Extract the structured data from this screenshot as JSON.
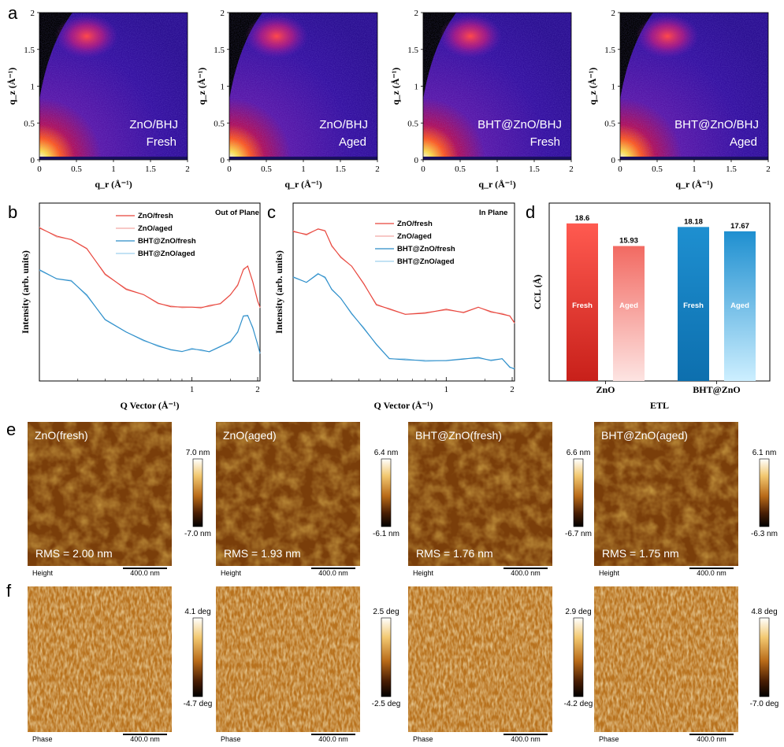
{
  "panels": {
    "a": "a",
    "b": "b",
    "c": "c",
    "d": "d",
    "e": "e",
    "f": "f"
  },
  "giwaxs": {
    "maps": [
      {
        "line1": "ZnO/BHJ",
        "line2": "Fresh"
      },
      {
        "line1": "ZnO/BHJ",
        "line2": "Aged"
      },
      {
        "line1": "BHT@ZnO/BHJ",
        "line2": "Fresh"
      },
      {
        "line1": "BHT@ZnO/BHJ",
        "line2": "Aged"
      }
    ],
    "xticks": [
      "0",
      "0.5",
      "1",
      "1.5",
      "2"
    ],
    "yticks": [
      "0",
      "0.5",
      "1",
      "1.5",
      "2"
    ],
    "xlabel": "q_r (Å⁻¹)",
    "ylabel": "q_z (Å⁻¹)"
  },
  "chart_data": [
    {
      "type": "line",
      "panel": "b",
      "title": "Out of Plane",
      "xlabel": "Q Vector (Å⁻¹)",
      "ylabel": "Intensity (arb. units)",
      "xscale": "log",
      "xlim": [
        0.2,
        2.05
      ],
      "xticks": [
        "1",
        "2"
      ],
      "legend": [
        "ZnO/fresh",
        "ZnO/aged",
        "BHT@ZnO/fresh",
        "BHT@ZnO/aged"
      ],
      "series": [
        {
          "name": "ZnO/fresh",
          "color": "#e8433a",
          "x": [
            0.2,
            0.24,
            0.28,
            0.33,
            0.4,
            0.5,
            0.6,
            0.7,
            0.8,
            0.9,
            1.0,
            1.1,
            1.2,
            1.35,
            1.5,
            1.62,
            1.72,
            1.8,
            1.9,
            2.0,
            2.05
          ],
          "y": [
            0.86,
            0.81,
            0.8,
            0.74,
            0.6,
            0.52,
            0.48,
            0.44,
            0.42,
            0.41,
            0.42,
            0.41,
            0.42,
            0.44,
            0.48,
            0.54,
            0.63,
            0.64,
            0.56,
            0.45,
            0.41
          ]
        },
        {
          "name": "ZnO/aged",
          "color": "#f2a8a3",
          "x": [
            0.2,
            0.24,
            0.28,
            0.33,
            0.4,
            0.5,
            0.6,
            0.7,
            0.8,
            0.9,
            1.0,
            1.1,
            1.2,
            1.35,
            1.5,
            1.62,
            1.72,
            1.8,
            1.9,
            2.0,
            2.05
          ],
          "y": [
            0.86,
            0.81,
            0.8,
            0.74,
            0.6,
            0.52,
            0.48,
            0.44,
            0.42,
            0.41,
            0.42,
            0.41,
            0.42,
            0.44,
            0.48,
            0.54,
            0.63,
            0.64,
            0.56,
            0.45,
            0.41
          ]
        },
        {
          "name": "BHT@ZnO/fresh",
          "color": "#2a8cc8",
          "x": [
            0.2,
            0.24,
            0.28,
            0.33,
            0.4,
            0.5,
            0.6,
            0.7,
            0.8,
            0.9,
            1.0,
            1.1,
            1.2,
            1.35,
            1.5,
            1.62,
            1.72,
            1.8,
            1.9,
            2.0,
            2.05
          ],
          "y": [
            0.62,
            0.58,
            0.56,
            0.48,
            0.35,
            0.27,
            0.23,
            0.2,
            0.17,
            0.17,
            0.18,
            0.17,
            0.17,
            0.19,
            0.22,
            0.28,
            0.36,
            0.37,
            0.3,
            0.2,
            0.16
          ]
        },
        {
          "name": "BHT@ZnO/aged",
          "color": "#9fd0ee",
          "x": [
            0.2,
            0.24,
            0.28,
            0.33,
            0.4,
            0.5,
            0.6,
            0.7,
            0.8,
            0.9,
            1.0,
            1.1,
            1.2,
            1.35,
            1.5,
            1.62,
            1.72,
            1.8,
            1.9,
            2.0,
            2.05
          ],
          "y": [
            0.62,
            0.58,
            0.56,
            0.48,
            0.35,
            0.27,
            0.23,
            0.2,
            0.17,
            0.17,
            0.18,
            0.17,
            0.17,
            0.19,
            0.22,
            0.28,
            0.36,
            0.37,
            0.3,
            0.2,
            0.16
          ]
        }
      ]
    },
    {
      "type": "line",
      "panel": "c",
      "title": "In Plane",
      "xlabel": "Q Vector (Å⁻¹)",
      "ylabel": "Intensity (arb. units)",
      "xscale": "log",
      "xlim": [
        0.2,
        2.05
      ],
      "xticks": [
        "1",
        "2"
      ],
      "legend": [
        "ZnO/fresh",
        "ZnO/aged",
        "BHT@ZnO/fresh",
        "BHT@ZnO/aged"
      ],
      "series": [
        {
          "name": "ZnO/fresh",
          "color": "#e8433a",
          "x": [
            0.2,
            0.23,
            0.26,
            0.28,
            0.3,
            0.33,
            0.37,
            0.42,
            0.48,
            0.55,
            0.65,
            0.8,
            1.0,
            1.2,
            1.4,
            1.6,
            1.8,
            1.95,
            2.05
          ],
          "y": [
            0.84,
            0.82,
            0.86,
            0.84,
            0.76,
            0.7,
            0.64,
            0.55,
            0.43,
            0.4,
            0.38,
            0.38,
            0.4,
            0.39,
            0.41,
            0.39,
            0.38,
            0.36,
            0.33
          ]
        },
        {
          "name": "ZnO/aged",
          "color": "#f2a8a3",
          "x": [
            0.2,
            0.23,
            0.26,
            0.28,
            0.3,
            0.33,
            0.37,
            0.42,
            0.48,
            0.55,
            0.65,
            0.8,
            1.0,
            1.2,
            1.4,
            1.6,
            1.8,
            1.95,
            2.05
          ],
          "y": [
            0.84,
            0.82,
            0.86,
            0.84,
            0.76,
            0.7,
            0.64,
            0.55,
            0.43,
            0.4,
            0.38,
            0.38,
            0.4,
            0.39,
            0.41,
            0.39,
            0.38,
            0.36,
            0.33
          ]
        },
        {
          "name": "BHT@ZnO/fresh",
          "color": "#2a8cc8",
          "x": [
            0.2,
            0.23,
            0.26,
            0.28,
            0.3,
            0.33,
            0.37,
            0.42,
            0.48,
            0.55,
            0.65,
            0.8,
            1.0,
            1.2,
            1.4,
            1.6,
            1.8,
            1.95,
            2.05
          ],
          "y": [
            0.58,
            0.56,
            0.6,
            0.58,
            0.52,
            0.46,
            0.38,
            0.3,
            0.2,
            0.13,
            0.12,
            0.11,
            0.12,
            0.12,
            0.13,
            0.12,
            0.12,
            0.08,
            0.07
          ]
        },
        {
          "name": "BHT@ZnO/aged",
          "color": "#9fd0ee",
          "x": [
            0.2,
            0.23,
            0.26,
            0.28,
            0.3,
            0.33,
            0.37,
            0.42,
            0.48,
            0.55,
            0.65,
            0.8,
            1.0,
            1.2,
            1.4,
            1.6,
            1.8,
            1.95,
            2.05
          ],
          "y": [
            0.58,
            0.56,
            0.6,
            0.58,
            0.52,
            0.46,
            0.38,
            0.3,
            0.2,
            0.13,
            0.12,
            0.11,
            0.12,
            0.12,
            0.13,
            0.12,
            0.12,
            0.08,
            0.07
          ]
        }
      ]
    },
    {
      "type": "bar",
      "panel": "d",
      "xlabel": "ETL",
      "ylabel": "CCL (Å)",
      "ylim": [
        0,
        21
      ],
      "categories": [
        "ZnO",
        "BHT@ZnO"
      ],
      "series": [
        {
          "name": "Fresh",
          "values": [
            18.6,
            18.18
          ],
          "labels": [
            "18.6",
            "18.18"
          ]
        },
        {
          "name": "Aged",
          "values": [
            15.93,
            17.67
          ],
          "labels": [
            "15.93",
            "17.67"
          ]
        }
      ],
      "colors": {
        "zno_fresh": "#e8433a",
        "zno_aged": "#f4a6a0",
        "bht_fresh": "#1a86c6",
        "bht_aged": "#8fd0f0"
      }
    }
  ],
  "afm": {
    "height": [
      {
        "title": "ZnO(fresh)",
        "rms": "RMS = 2.00 nm",
        "cb_max": "7.0 nm",
        "cb_min": "-7.0 nm"
      },
      {
        "title": "ZnO(aged)",
        "rms": "RMS = 1.93 nm",
        "cb_max": "6.4 nm",
        "cb_min": "-6.1 nm"
      },
      {
        "title": "BHT@ZnO(fresh)",
        "rms": "RMS = 1.76 nm",
        "cb_max": "6.6 nm",
        "cb_min": "-6.7 nm"
      },
      {
        "title": "BHT@ZnO(aged)",
        "rms": "RMS = 1.75 nm",
        "cb_max": "6.1 nm",
        "cb_min": "-6.3 nm"
      }
    ],
    "phase": [
      {
        "cb_max": "4.1 deg",
        "cb_min": "-4.7 deg"
      },
      {
        "cb_max": "2.5 deg",
        "cb_min": "-2.5 deg"
      },
      {
        "cb_max": "2.9 deg",
        "cb_min": "-4.2 deg"
      },
      {
        "cb_max": "4.8 deg",
        "cb_min": "-7.0 deg"
      }
    ],
    "height_label": "Height",
    "phase_label": "Phase",
    "scalebar": "400.0 nm"
  }
}
